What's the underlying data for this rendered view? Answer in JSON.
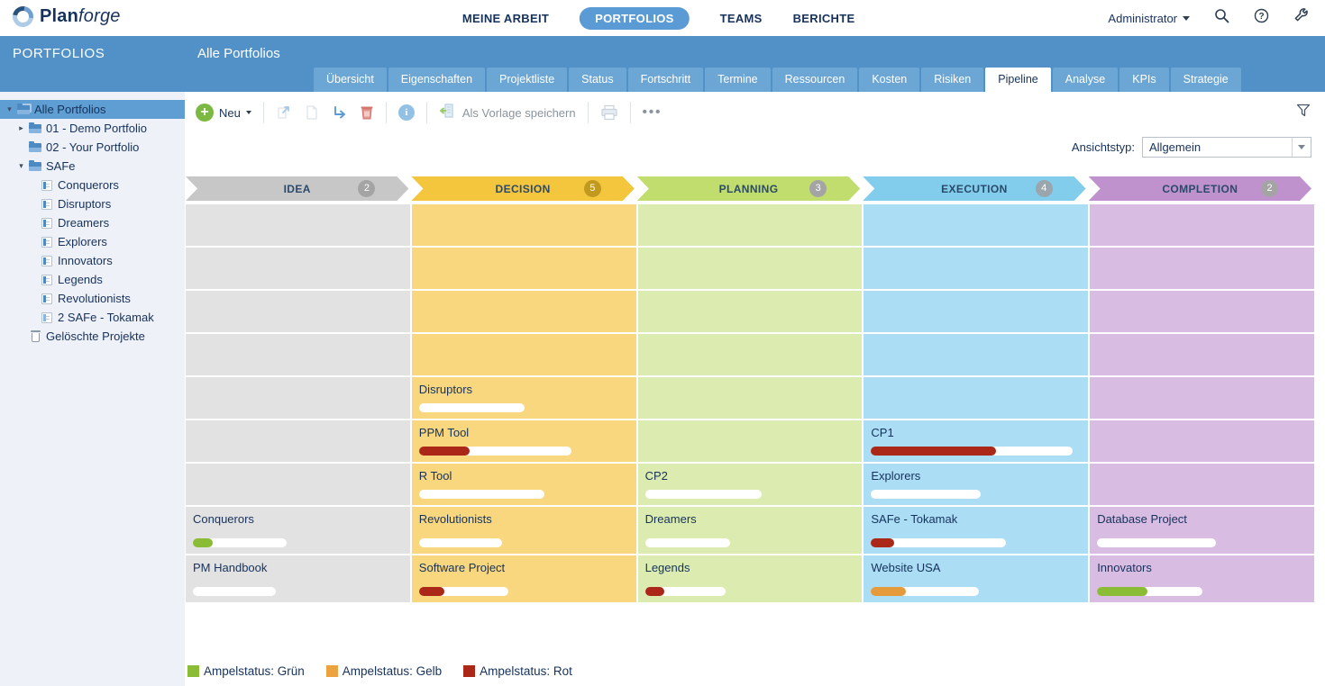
{
  "header": {
    "brand": {
      "part1": "Plan",
      "part2": "forge"
    },
    "nav": [
      {
        "label": "MEINE ARBEIT",
        "active": false
      },
      {
        "label": "PORTFOLIOS",
        "active": true
      },
      {
        "label": "TEAMS",
        "active": false
      },
      {
        "label": "BERICHTE",
        "active": false
      }
    ],
    "user_menu": "Administrator",
    "icons": [
      "search-icon",
      "help-icon",
      "admin-tools-icon"
    ]
  },
  "sidebar": {
    "title": "PORTFOLIOS",
    "tree": [
      {
        "label": "Alle Portfolios",
        "level": 0,
        "expander": "open",
        "icon": "folders",
        "selected": true
      },
      {
        "label": "01 - Demo Portfolio",
        "level": 1,
        "expander": "closed",
        "icon": "folder",
        "selected": false
      },
      {
        "label": "02 - Your Portfolio",
        "level": 1,
        "expander": null,
        "icon": "folder",
        "selected": false
      },
      {
        "label": "SAFe",
        "level": 1,
        "expander": "open",
        "icon": "folder",
        "selected": false
      },
      {
        "label": "Conquerors",
        "level": 2,
        "expander": null,
        "icon": "project",
        "selected": false
      },
      {
        "label": "Disruptors",
        "level": 2,
        "expander": null,
        "icon": "project",
        "selected": false
      },
      {
        "label": "Dreamers",
        "level": 2,
        "expander": null,
        "icon": "project",
        "selected": false
      },
      {
        "label": "Explorers",
        "level": 2,
        "expander": null,
        "icon": "project",
        "selected": false
      },
      {
        "label": "Innovators",
        "level": 2,
        "expander": null,
        "icon": "project",
        "selected": false
      },
      {
        "label": "Legends",
        "level": 2,
        "expander": null,
        "icon": "project",
        "selected": false
      },
      {
        "label": "Revolutionists",
        "level": 2,
        "expander": null,
        "icon": "project",
        "selected": false
      },
      {
        "label": "2 SAFe - Tokamak",
        "level": 2,
        "expander": null,
        "icon": "project-alt",
        "selected": false
      },
      {
        "label": "Gelöschte Projekte",
        "level": 1,
        "expander": null,
        "icon": "trash",
        "selected": false
      }
    ]
  },
  "content": {
    "page_title": "Alle Portfolios",
    "tabs": [
      {
        "label": "Übersicht",
        "active": false
      },
      {
        "label": "Eigenschaften",
        "active": false
      },
      {
        "label": "Projektliste",
        "active": false
      },
      {
        "label": "Status",
        "active": false
      },
      {
        "label": "Fortschritt",
        "active": false
      },
      {
        "label": "Termine",
        "active": false
      },
      {
        "label": "Ressourcen",
        "active": false
      },
      {
        "label": "Kosten",
        "active": false
      },
      {
        "label": "Risiken",
        "active": false
      },
      {
        "label": "Pipeline",
        "active": true
      },
      {
        "label": "Analyse",
        "active": false
      },
      {
        "label": "KPIs",
        "active": false
      },
      {
        "label": "Strategie",
        "active": false
      }
    ],
    "toolbar": {
      "new_label": "Neu",
      "save_template_label": "Als Vorlage speichern",
      "icons": [
        "new",
        "open",
        "copy",
        "move",
        "delete",
        "info",
        "save-as-template",
        "print",
        "more",
        "filter"
      ]
    },
    "view_type": {
      "label": "Ansichtstyp:",
      "value": "Allgemein"
    }
  },
  "pipeline": {
    "stages": [
      {
        "name": "IDEA",
        "count": "2",
        "header_color": "#c7c7c7",
        "cell_color": "#e2e2e2",
        "badge_color": "#a4a4a4"
      },
      {
        "name": "DECISION",
        "count": "5",
        "header_color": "#f3c63e",
        "cell_color": "#f8d77e",
        "badge_color": "#c0991e"
      },
      {
        "name": "PLANNING",
        "count": "3",
        "header_color": "#c0dd6e",
        "cell_color": "#dcecb1",
        "badge_color": "#a4a4a4"
      },
      {
        "name": "EXECUTION",
        "count": "4",
        "header_color": "#82ccec",
        "cell_color": "#abdef4",
        "badge_color": "#9aa6ac"
      },
      {
        "name": "COMPLETION",
        "count": "2",
        "header_color": "#bf92cd",
        "cell_color": "#d9bce2",
        "badge_color": "#a4a4a4"
      }
    ],
    "rows": [
      [
        null,
        null,
        null,
        null,
        null
      ],
      [
        null,
        null,
        null,
        null,
        null
      ],
      [
        null,
        null,
        null,
        null,
        null
      ],
      [
        null,
        null,
        null,
        null,
        null
      ],
      [
        null,
        {
          "title": "Disruptors",
          "bar": 47,
          "fill": 0,
          "status": "none"
        },
        null,
        null,
        null
      ],
      [
        null,
        {
          "title": "PPM Tool",
          "bar": 68,
          "fill": 33,
          "status": "red"
        },
        null,
        {
          "title": "CP1",
          "bar": 90,
          "fill": 62,
          "status": "red"
        },
        null
      ],
      [
        null,
        {
          "title": "R Tool",
          "bar": 56,
          "fill": 0,
          "status": "none"
        },
        {
          "title": "CP2",
          "bar": 52,
          "fill": 0,
          "status": "none"
        },
        {
          "title": "Explorers",
          "bar": 49,
          "fill": 0,
          "status": "none"
        },
        null
      ],
      [
        {
          "title": "Conquerors",
          "bar": 42,
          "fill": 21,
          "status": "green"
        },
        {
          "title": "Revolutionists",
          "bar": 37,
          "fill": 0,
          "status": "none"
        },
        {
          "title": "Dreamers",
          "bar": 38,
          "fill": 0,
          "status": "none"
        },
        {
          "title": "SAFe - Tokamak",
          "bar": 60,
          "fill": 17,
          "status": "red"
        },
        {
          "title": "Database Project",
          "bar": 53,
          "fill": 0,
          "status": "none"
        }
      ],
      [
        {
          "title": "PM Handbook",
          "bar": 37,
          "fill": 0,
          "status": "none"
        },
        {
          "title": "Software Project",
          "bar": 40,
          "fill": 28,
          "status": "red"
        },
        {
          "title": "Legends",
          "bar": 36,
          "fill": 24,
          "status": "red"
        },
        {
          "title": "Website USA",
          "bar": 48,
          "fill": 32,
          "status": "yellow"
        },
        {
          "title": "Innovators",
          "bar": 47,
          "fill": 48,
          "status": "green"
        }
      ]
    ]
  },
  "status_colors": {
    "green": "#8abc35",
    "yellow": "#e59b3c",
    "red": "#ab2717"
  },
  "legend": [
    {
      "label": "Ampelstatus: Grün",
      "color": "#8abc35"
    },
    {
      "label": "Ampelstatus: Gelb",
      "color": "#eca33f"
    },
    {
      "label": "Ampelstatus: Rot",
      "color": "#ab2717"
    }
  ]
}
